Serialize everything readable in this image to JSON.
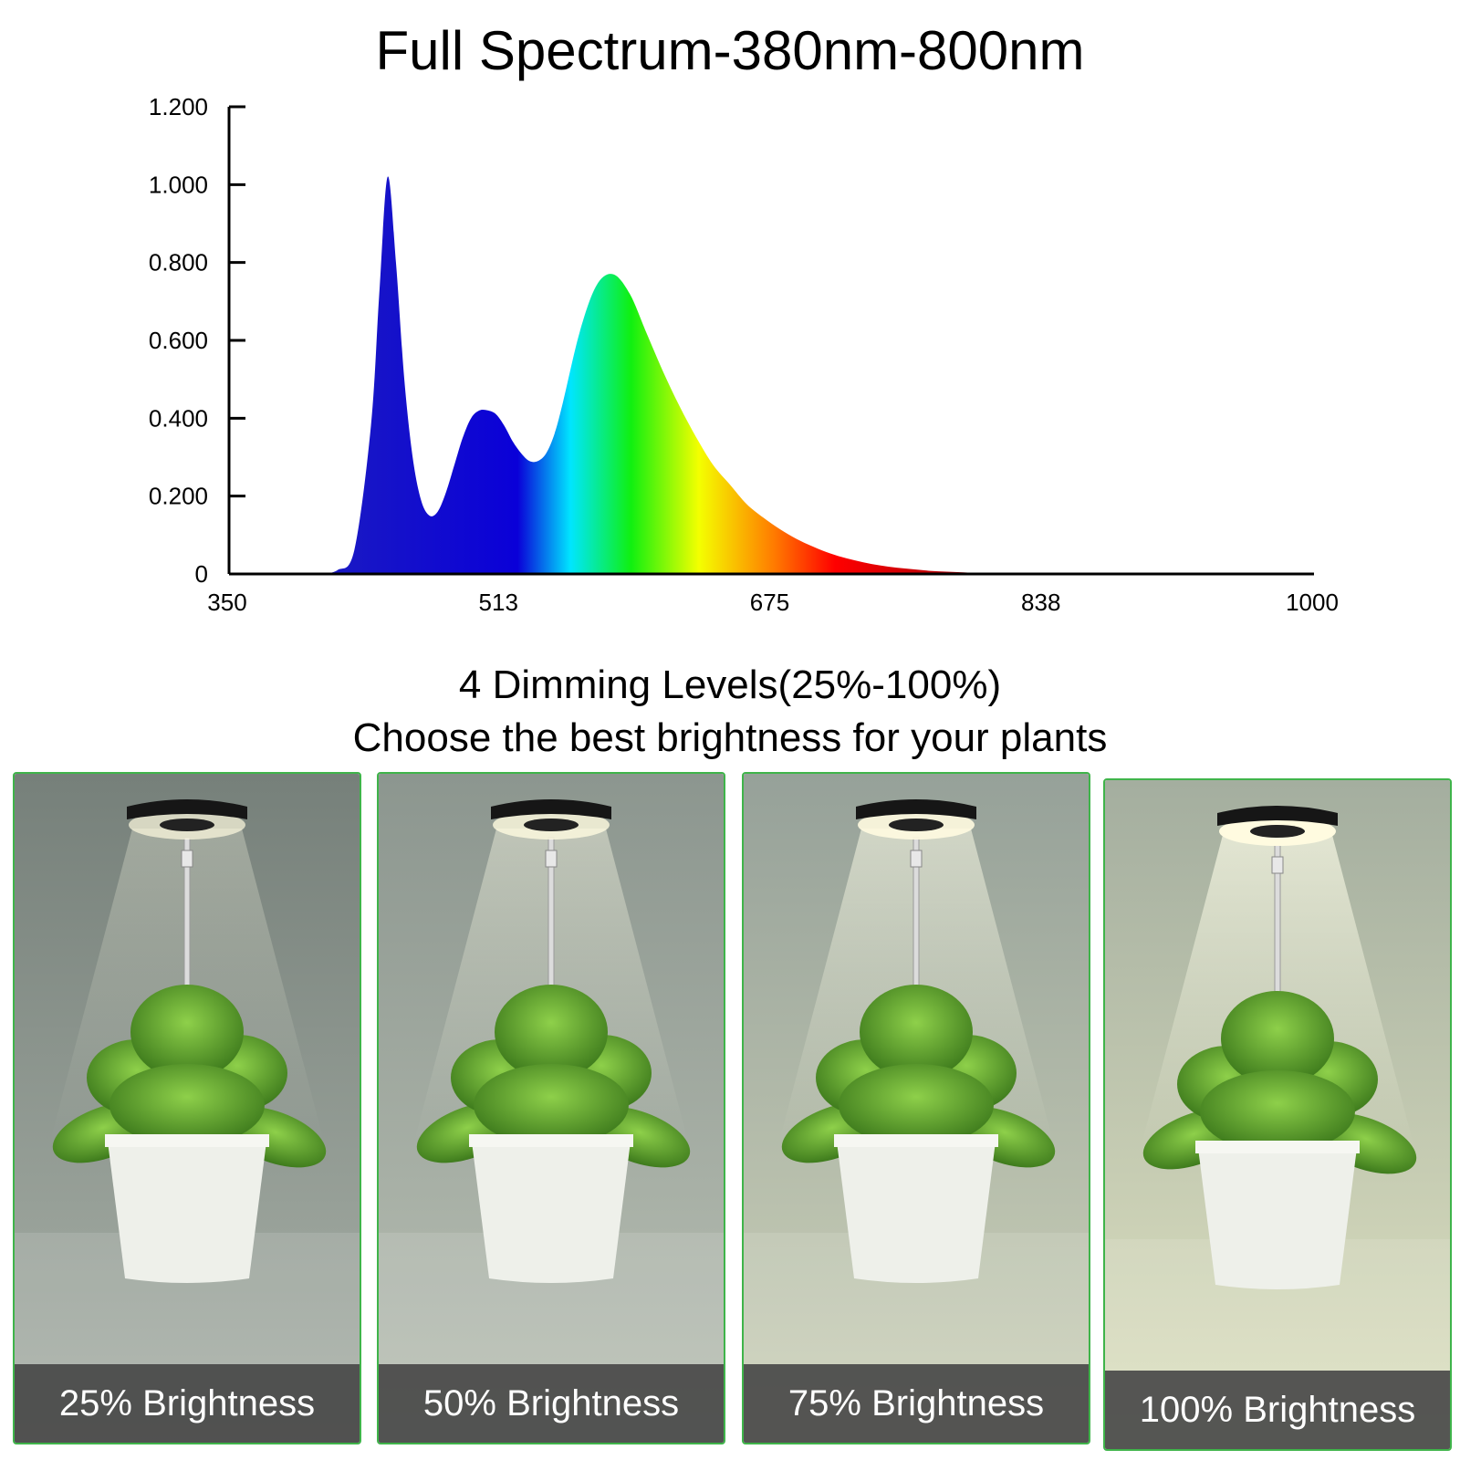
{
  "header": {
    "title": "Full Spectrum-380nm-800nm"
  },
  "chart_data": {
    "type": "area",
    "title": "Full Spectrum-380nm-800nm",
    "xlabel": "",
    "ylabel": "",
    "xlim": [
      350,
      1000
    ],
    "ylim": [
      0,
      1.2
    ],
    "x_ticks": [
      "350",
      "513",
      "675",
      "838",
      "1000"
    ],
    "y_ticks": [
      "0",
      "0.200",
      "0.400",
      "0.600",
      "0.800",
      "1.000",
      "1.200"
    ],
    "grid": false,
    "legend": "none",
    "series": [
      {
        "x": [
          405,
          415,
          425,
          435,
          440,
          445,
          450,
          455,
          460,
          465,
          470,
          475,
          480,
          485,
          490,
          495,
          500,
          505,
          510,
          515,
          520,
          525,
          530,
          535,
          540,
          545,
          550,
          560,
          570,
          580,
          590,
          600,
          610,
          620,
          630,
          640,
          650,
          660,
          670,
          680,
          690,
          700,
          710,
          720,
          730,
          740,
          750,
          760,
          770,
          780,
          790,
          800,
          810,
          820,
          830,
          840,
          850,
          860
        ],
        "y": [
          0.0,
          0.01,
          0.06,
          0.38,
          0.72,
          1.02,
          0.8,
          0.5,
          0.3,
          0.19,
          0.15,
          0.16,
          0.21,
          0.28,
          0.35,
          0.4,
          0.42,
          0.42,
          0.41,
          0.38,
          0.34,
          0.31,
          0.29,
          0.29,
          0.31,
          0.36,
          0.44,
          0.62,
          0.74,
          0.77,
          0.72,
          0.62,
          0.52,
          0.43,
          0.35,
          0.28,
          0.23,
          0.18,
          0.145,
          0.115,
          0.09,
          0.07,
          0.053,
          0.04,
          0.03,
          0.022,
          0.016,
          0.012,
          0.008,
          0.006,
          0.004,
          0.002,
          0.001,
          0.0,
          0.0,
          0.0,
          0.0,
          0.0
        ]
      }
    ],
    "gradient": [
      {
        "at": 0.0,
        "color": "#1b1bc2"
      },
      {
        "at": 0.26,
        "color": "#0a00d8"
      },
      {
        "at": 0.33,
        "color": "#00e6ff"
      },
      {
        "at": 0.41,
        "color": "#10f010"
      },
      {
        "at": 0.5,
        "color": "#f4ff00"
      },
      {
        "at": 0.6,
        "color": "#ff7a00"
      },
      {
        "at": 0.68,
        "color": "#ff0000"
      },
      {
        "at": 0.84,
        "color": "#b00008"
      },
      {
        "at": 1.0,
        "color": "#5a0000"
      }
    ]
  },
  "dimming": {
    "line1": "4 Dimming Levels(25%-100%)",
    "line2": "Choose the best brightness for your plants",
    "panels": [
      {
        "caption": "25% Brightness",
        "level": 0.25,
        "bg_top": "#76807a",
        "bg_bottom": "#a9b1a8"
      },
      {
        "caption": "50% Brightness",
        "level": 0.5,
        "bg_top": "#8c968f",
        "bg_bottom": "#b9c0b4"
      },
      {
        "caption": "75% Brightness",
        "level": 0.75,
        "bg_top": "#96a199",
        "bg_bottom": "#cdd2b9"
      },
      {
        "caption": "100% Brightness",
        "level": 1.0,
        "bg_top": "#a4ae9f",
        "bg_bottom": "#dfe2c1"
      }
    ]
  },
  "colors": {
    "panel_border": "#3fb44a",
    "caption_bg": "#464646",
    "caption_text": "#ffffff"
  }
}
